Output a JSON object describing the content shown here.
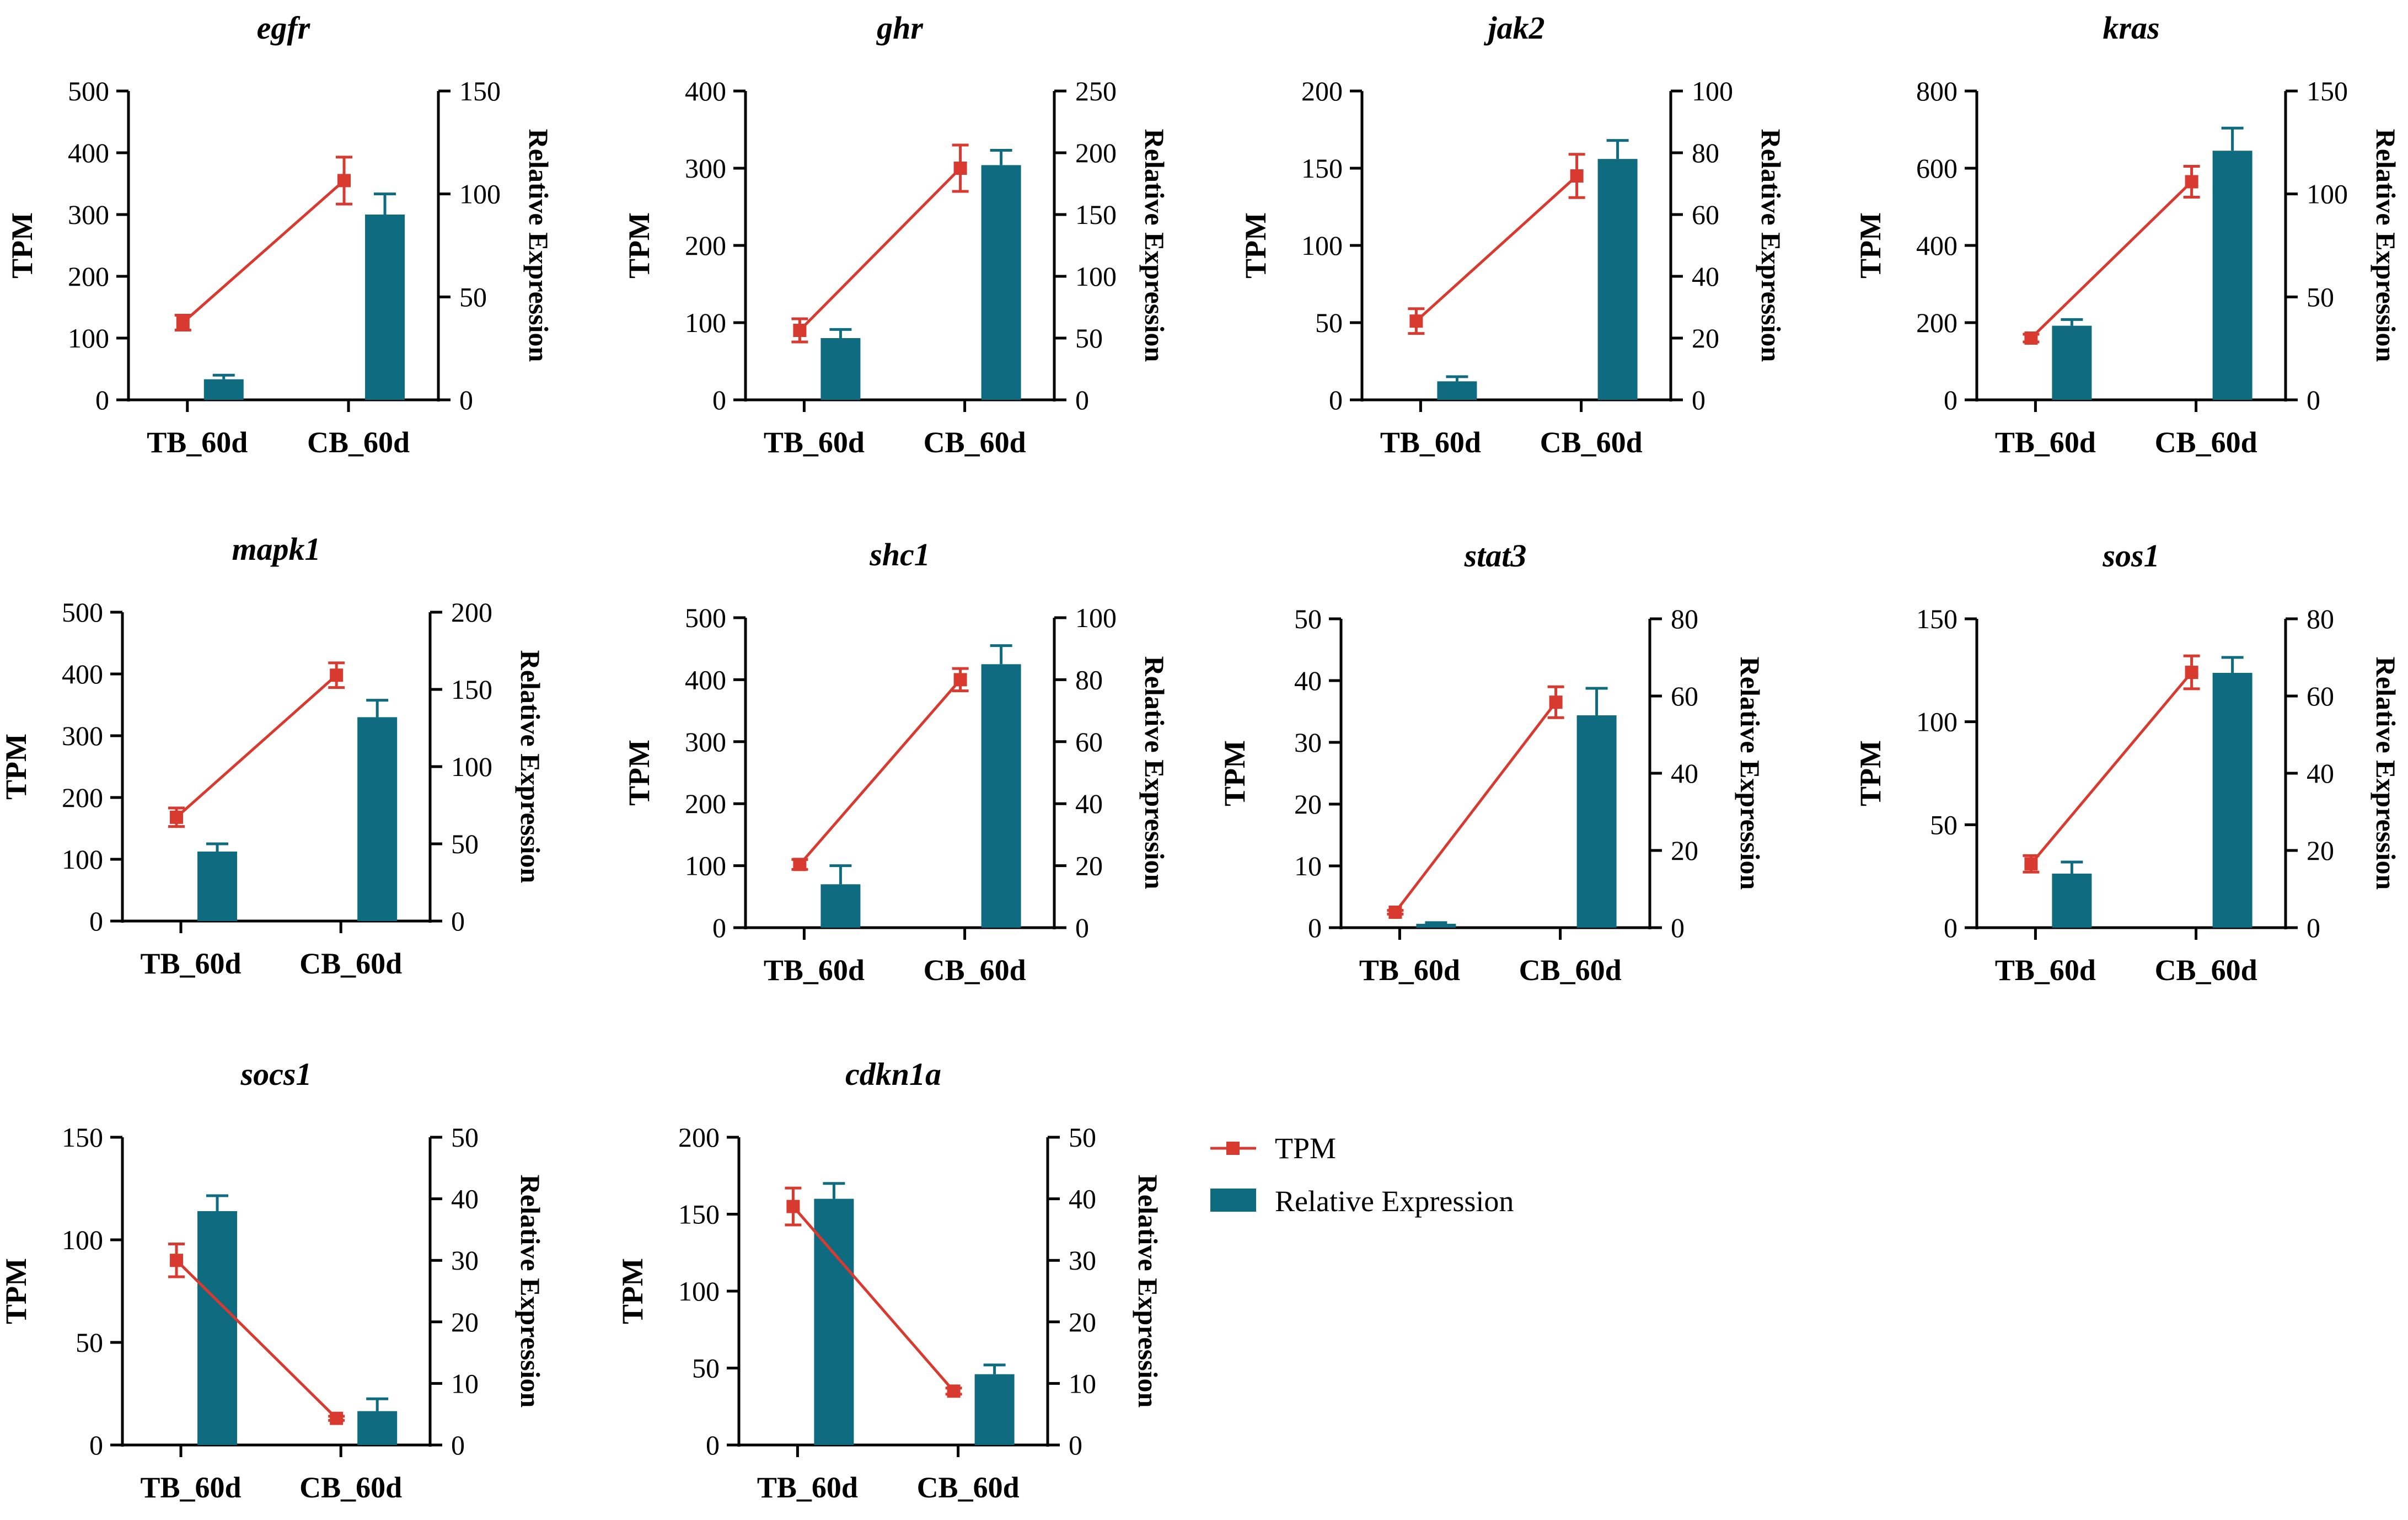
{
  "colors": {
    "tpm": "#d93a2f",
    "bar": "#0e6b80",
    "axis": "#000000"
  },
  "legend": {
    "tpm_label": "TPM",
    "bar_label": "Relative Expression"
  },
  "chart_data": [
    {
      "type": "bar+line",
      "title": "egfr",
      "categories": [
        "TB_60d",
        "CB_60d"
      ],
      "ylabel": "TPM",
      "y2label": "Relative Expression",
      "ylim": [
        0,
        500
      ],
      "yticks": [
        0,
        100,
        200,
        300,
        400,
        500
      ],
      "y2lim": [
        0,
        150
      ],
      "y2ticks": [
        0,
        50,
        100,
        150
      ],
      "tpm": [
        125,
        355
      ],
      "tpm_err": [
        12,
        38
      ],
      "rel": [
        10,
        90
      ],
      "rel_err": [
        2,
        10
      ]
    },
    {
      "type": "bar+line",
      "title": "ghr",
      "categories": [
        "TB_60d",
        "CB_60d"
      ],
      "ylabel": "TPM",
      "y2label": "Relative Expression",
      "ylim": [
        0,
        400
      ],
      "yticks": [
        0,
        100,
        200,
        300,
        400
      ],
      "y2lim": [
        0,
        250
      ],
      "y2ticks": [
        0,
        50,
        100,
        150,
        200,
        250
      ],
      "tpm": [
        90,
        300
      ],
      "tpm_err": [
        15,
        30
      ],
      "rel": [
        50,
        190
      ],
      "rel_err": [
        7,
        12
      ]
    },
    {
      "type": "bar+line",
      "title": "jak2",
      "categories": [
        "TB_60d",
        "CB_60d"
      ],
      "ylabel": "TPM",
      "y2label": "Relative Expression",
      "ylim": [
        0,
        200
      ],
      "yticks": [
        0,
        50,
        100,
        150,
        200
      ],
      "y2lim": [
        0,
        100
      ],
      "y2ticks": [
        0,
        20,
        40,
        60,
        80,
        100
      ],
      "tpm": [
        51,
        145
      ],
      "tpm_err": [
        8,
        14
      ],
      "rel": [
        6,
        78
      ],
      "rel_err": [
        1.5,
        6
      ]
    },
    {
      "type": "bar+line",
      "title": "kras",
      "categories": [
        "TB_60d",
        "CB_60d"
      ],
      "ylabel": "TPM",
      "y2label": "Relative Expression",
      "ylim": [
        0,
        800
      ],
      "yticks": [
        0,
        200,
        400,
        600,
        800
      ],
      "y2lim": [
        0,
        150
      ],
      "y2ticks": [
        0,
        50,
        100,
        150
      ],
      "tpm": [
        160,
        565
      ],
      "tpm_err": [
        10,
        40
      ],
      "rel": [
        36,
        121
      ],
      "rel_err": [
        3,
        11
      ]
    },
    {
      "type": "bar+line",
      "title": "mapk1",
      "categories": [
        "TB_60d",
        "CB_60d"
      ],
      "ylabel": "TPM",
      "y2label": "Relative Expression",
      "ylim": [
        0,
        500
      ],
      "yticks": [
        0,
        100,
        200,
        300,
        400,
        500
      ],
      "y2lim": [
        0,
        200
      ],
      "y2ticks": [
        0,
        50,
        100,
        150,
        200
      ],
      "tpm": [
        168,
        398
      ],
      "tpm_err": [
        15,
        20
      ],
      "rel": [
        45,
        132
      ],
      "rel_err": [
        5,
        11
      ]
    },
    {
      "type": "bar+line",
      "title": "shc1",
      "categories": [
        "TB_60d",
        "CB_60d"
      ],
      "ylabel": "TPM",
      "y2label": "Relative Expression",
      "ylim": [
        0,
        500
      ],
      "yticks": [
        0,
        100,
        200,
        300,
        400,
        500
      ],
      "y2lim": [
        0,
        100
      ],
      "y2ticks": [
        0,
        20,
        40,
        60,
        80,
        100
      ],
      "tpm": [
        102,
        400
      ],
      "tpm_err": [
        8,
        18
      ],
      "rel": [
        14,
        85
      ],
      "rel_err": [
        6,
        6
      ]
    },
    {
      "type": "bar+line",
      "title": "stat3",
      "categories": [
        "TB_60d",
        "CB_60d"
      ],
      "ylabel": "TPM",
      "y2label": "Relative Expression",
      "ylim": [
        0,
        50
      ],
      "yticks": [
        0,
        10,
        20,
        30,
        40,
        50
      ],
      "y2lim": [
        0,
        80
      ],
      "y2ticks": [
        0,
        20,
        40,
        60,
        80
      ],
      "tpm": [
        2.5,
        36.5
      ],
      "tpm_err": [
        0.3,
        2.5
      ],
      "rel": [
        1,
        55
      ],
      "rel_err": [
        0.3,
        7
      ]
    },
    {
      "type": "bar+line",
      "title": "sos1",
      "categories": [
        "TB_60d",
        "CB_60d"
      ],
      "ylabel": "TPM",
      "y2label": "Relative Expression",
      "ylim": [
        0,
        150
      ],
      "yticks": [
        0,
        50,
        100,
        150
      ],
      "y2lim": [
        0,
        80
      ],
      "y2ticks": [
        0,
        20,
        40,
        60,
        80
      ],
      "tpm": [
        31,
        124
      ],
      "tpm_err": [
        4,
        8
      ],
      "rel": [
        14,
        66
      ],
      "rel_err": [
        3,
        4
      ]
    },
    {
      "type": "bar+line",
      "title": "socs1",
      "categories": [
        "TB_60d",
        "CB_60d"
      ],
      "ylabel": "TPM",
      "y2label": "Relative Expression",
      "ylim": [
        0,
        150
      ],
      "yticks": [
        0,
        50,
        100,
        150
      ],
      "y2lim": [
        0,
        50
      ],
      "y2ticks": [
        0,
        10,
        20,
        30,
        40,
        50
      ],
      "tpm": [
        90,
        13
      ],
      "tpm_err": [
        8,
        1
      ],
      "rel": [
        38,
        5.5
      ],
      "rel_err": [
        2.5,
        2
      ]
    },
    {
      "type": "bar+line",
      "title": "cdkn1a",
      "categories": [
        "TB_60d",
        "CB_60d"
      ],
      "ylabel": "TPM",
      "y2label": "Relative Expression",
      "ylim": [
        0,
        200
      ],
      "yticks": [
        0,
        50,
        100,
        150,
        200
      ],
      "y2lim": [
        0,
        50
      ],
      "y2ticks": [
        0,
        10,
        20,
        30,
        40,
        50
      ],
      "tpm": [
        155,
        35
      ],
      "tpm_err": [
        12,
        2
      ],
      "rel": [
        40,
        11.5
      ],
      "rel_err": [
        2.5,
        1.5
      ]
    }
  ]
}
